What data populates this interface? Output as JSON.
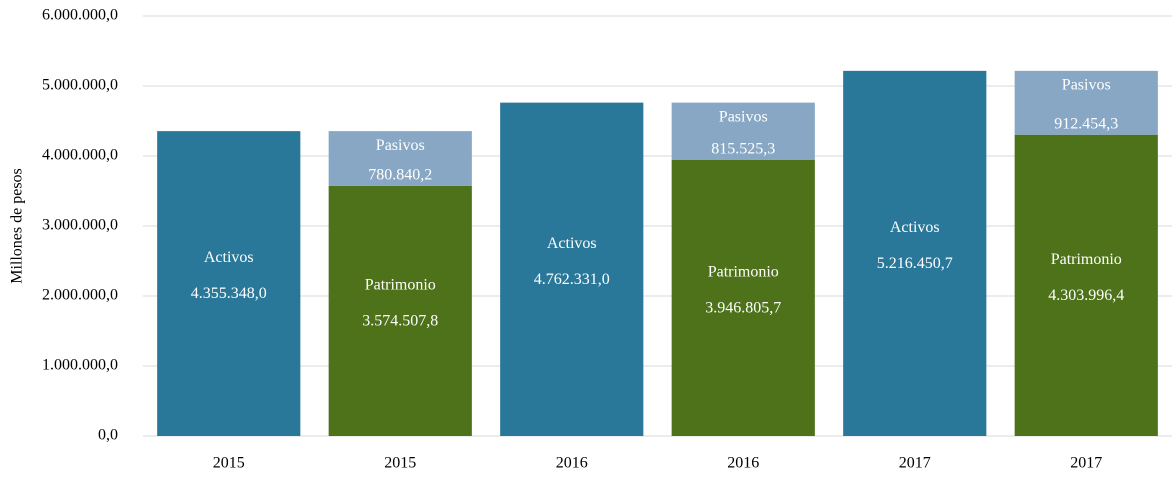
{
  "chart_data": {
    "type": "stacked_bar",
    "y_label": "Millones  de pesos",
    "categories": [
      "2015",
      "2015",
      "2016",
      "2016",
      "2017",
      "2017"
    ],
    "series": [
      {
        "name": "Activos",
        "color": "#2a7899",
        "values": [
          4355348.0,
          null,
          4762331.0,
          null,
          5216450.7,
          null
        ],
        "value_labels": [
          "4.355.348,0",
          null,
          "4.762.331,0",
          null,
          "5.216.450,7",
          null
        ]
      },
      {
        "name": "Patrimonio",
        "color": "#4d7219",
        "values": [
          null,
          3574507.8,
          null,
          3946805.7,
          null,
          4303996.4
        ],
        "value_labels": [
          null,
          "3.574.507,8",
          null,
          "3.946.805,7",
          null,
          "4.303.996,4"
        ]
      },
      {
        "name": "Pasivos",
        "color": "#87a7c4",
        "values": [
          null,
          780840.2,
          null,
          815525.3,
          null,
          912454.3
        ],
        "value_labels": [
          null,
          "780.840,2",
          null,
          "815.525,3",
          null,
          "912.454,3"
        ]
      }
    ],
    "ylim": [
      0,
      6000000
    ],
    "yticks": [
      {
        "value": 0,
        "label": "0,0"
      },
      {
        "value": 1000000,
        "label": "1.000.000,0"
      },
      {
        "value": 2000000,
        "label": "2.000.000,0"
      },
      {
        "value": 3000000,
        "label": "3.000.000,0"
      },
      {
        "value": 4000000,
        "label": "4.000.000,0"
      },
      {
        "value": 5000000,
        "label": "5.000.000,0"
      },
      {
        "value": 6000000,
        "label": "6.000.000,0"
      }
    ],
    "grid": true
  }
}
